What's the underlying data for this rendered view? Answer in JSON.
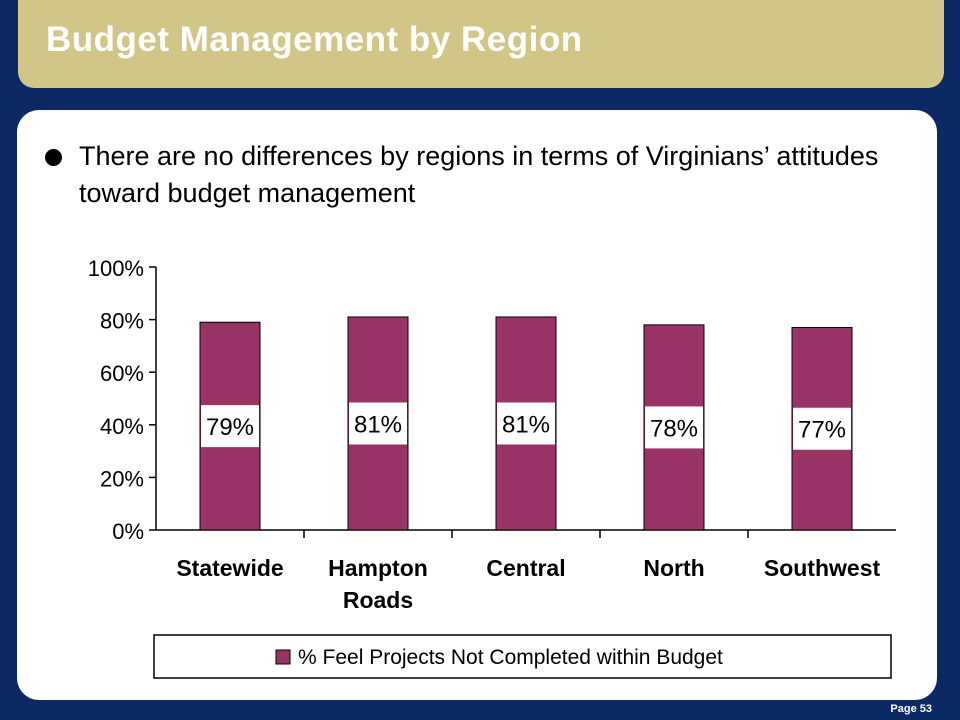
{
  "header": {
    "title": "Budget Management by Region"
  },
  "bullets": [
    "There are no differences by regions in terms of Virginians’ attitudes toward budget management"
  ],
  "footer": {
    "page": "Page 53"
  },
  "colors": {
    "bar": "#993366",
    "background": "#0b2a63",
    "header": "#d1c587"
  },
  "chart_data": {
    "type": "bar",
    "categories": [
      "Statewide",
      "Hampton Roads",
      "Central",
      "North",
      "Southwest"
    ],
    "series": [
      {
        "name": "% Feel Projects Not Completed within Budget",
        "values": [
          79,
          81,
          81,
          78,
          77
        ]
      }
    ],
    "data_labels": [
      "79%",
      "81%",
      "81%",
      "78%",
      "77%"
    ],
    "ylim": [
      0,
      100
    ],
    "yticks": [
      "0%",
      "20%",
      "40%",
      "60%",
      "80%",
      "100%"
    ],
    "ytick_values": [
      0,
      20,
      40,
      60,
      80,
      100
    ],
    "legend_position": "bottom",
    "grid": false
  }
}
